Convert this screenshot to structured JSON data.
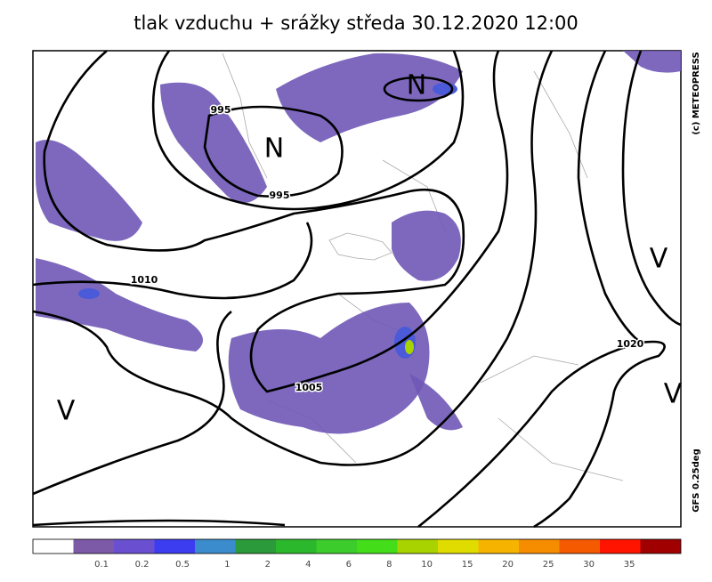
{
  "header": {
    "title": "tlak vzduchu + srážky  středa 30.12.2020 12:00"
  },
  "map": {
    "isobar_labels": [
      995,
      995,
      1010,
      1005,
      1020
    ],
    "centers": [
      "N",
      "N",
      "V",
      "V",
      "V"
    ]
  },
  "credits": {
    "copyright": "(c) METEOPRESS",
    "model": "GFS 0.25deg"
  },
  "legend": {
    "labels": [
      0.1,
      0.2,
      0.5,
      1,
      2,
      4,
      6,
      8,
      10,
      15,
      20,
      25,
      30,
      35
    ],
    "colors": [
      "#ffffff",
      "#7d5aa8",
      "#6a50d0",
      "#3c3cf0",
      "#3a8ccc",
      "#2a9a3a",
      "#2cb82c",
      "#3ccc2c",
      "#44dd1a",
      "#a8d200",
      "#e0dc00",
      "#f6b400",
      "#f68c00",
      "#f65a00",
      "#ff1400",
      "#a00000"
    ]
  }
}
